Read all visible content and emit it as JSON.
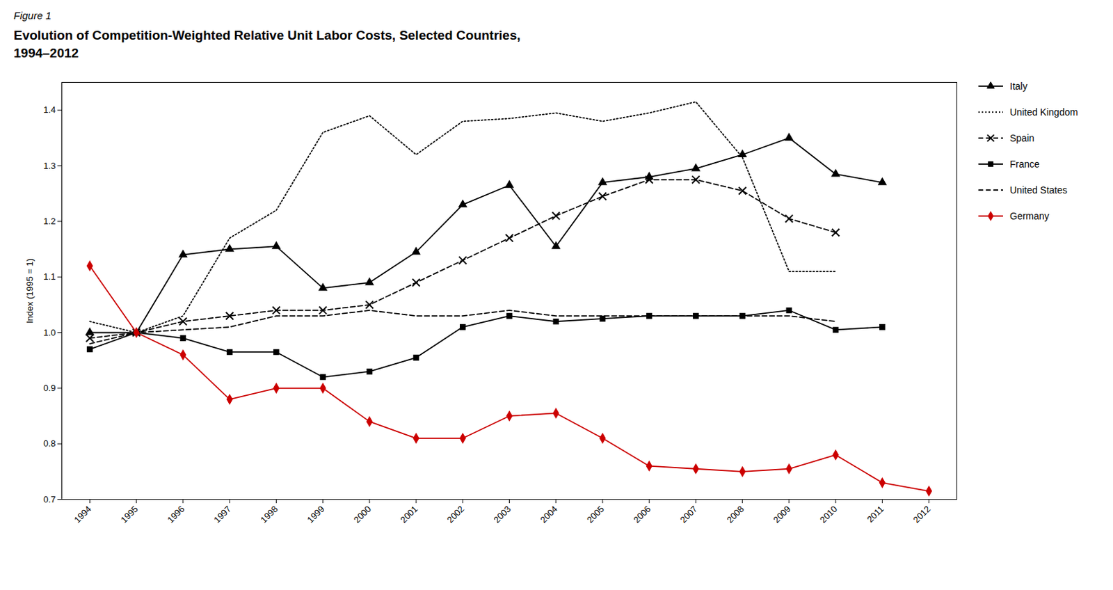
{
  "chart_data": {
    "type": "line",
    "title": "Evolution of Competition-Weighted Relative Unit Labor Costs, Selected Countries,\n1994–2012",
    "annotations": [
      "Figure 1"
    ],
    "ylabel": "Index (1995 = 1)",
    "x": [
      1994,
      1995,
      1996,
      1997,
      1998,
      1999,
      2000,
      2001,
      2002,
      2003,
      2004,
      2005,
      2006,
      2007,
      2008,
      2009,
      2010,
      2011,
      2012
    ],
    "series": [
      {
        "name": "Italy",
        "color": "black",
        "marker": "triangle",
        "line_style": "solid",
        "values": [
          1.0,
          1.0,
          1.14,
          1.15,
          1.155,
          1.08,
          1.09,
          1.145,
          1.23,
          1.265,
          1.155,
          1.27,
          1.28,
          1.295,
          1.32,
          1.35,
          1.285,
          1.27,
          null
        ]
      },
      {
        "name": "United Kingdom",
        "color": "black",
        "marker": "none",
        "line_style": "dotted",
        "values": [
          1.02,
          1.0,
          1.03,
          1.17,
          1.22,
          1.36,
          1.39,
          1.32,
          1.38,
          1.385,
          1.395,
          1.38,
          1.395,
          1.415,
          1.315,
          1.11,
          1.11,
          null,
          null
        ]
      },
      {
        "name": "Spain",
        "color": "black",
        "marker": "x",
        "line_style": "dashed",
        "values": [
          0.99,
          1.0,
          1.02,
          1.03,
          1.04,
          1.04,
          1.05,
          1.09,
          1.13,
          1.17,
          1.21,
          1.245,
          1.275,
          1.275,
          1.255,
          1.205,
          1.18,
          null,
          null
        ]
      },
      {
        "name": "France",
        "color": "black",
        "marker": "square",
        "line_style": "solid",
        "values": [
          0.97,
          1.0,
          0.99,
          0.965,
          0.965,
          0.92,
          0.93,
          0.955,
          1.01,
          1.03,
          1.02,
          1.025,
          1.03,
          1.03,
          1.03,
          1.04,
          1.005,
          1.01,
          null
        ]
      },
      {
        "name": "United States",
        "color": "black",
        "marker": "none",
        "line_style": "dashed",
        "values": [
          0.98,
          1.0,
          1.005,
          1.01,
          1.03,
          1.03,
          1.04,
          1.03,
          1.03,
          1.04,
          1.03,
          1.03,
          1.03,
          1.03,
          1.03,
          1.03,
          1.02,
          null,
          null
        ]
      },
      {
        "name": "Germany",
        "color": "#cc0000",
        "marker": "diamond",
        "line_style": "solid",
        "values": [
          1.12,
          1.0,
          0.96,
          0.88,
          0.9,
          0.9,
          0.84,
          0.81,
          0.81,
          0.85,
          0.855,
          0.81,
          0.76,
          0.755,
          0.75,
          0.755,
          0.78,
          0.73,
          0.715
        ]
      }
    ],
    "xlim": [
      1993.4,
      2012.6
    ],
    "xticks": [
      1994,
      1995,
      1996,
      1997,
      1998,
      1999,
      2000,
      2001,
      2002,
      2003,
      2004,
      2005,
      2006,
      2007,
      2008,
      2009,
      2010,
      2011,
      2012
    ],
    "ylim": [
      0.7,
      1.45
    ],
    "yticks": [
      0.7,
      0.8,
      0.9,
      {
        "value": 1.0,
        "label": "1.0"
      },
      1.1,
      1.2,
      1.3,
      1.4
    ],
    "grid": false,
    "legend": "right"
  }
}
